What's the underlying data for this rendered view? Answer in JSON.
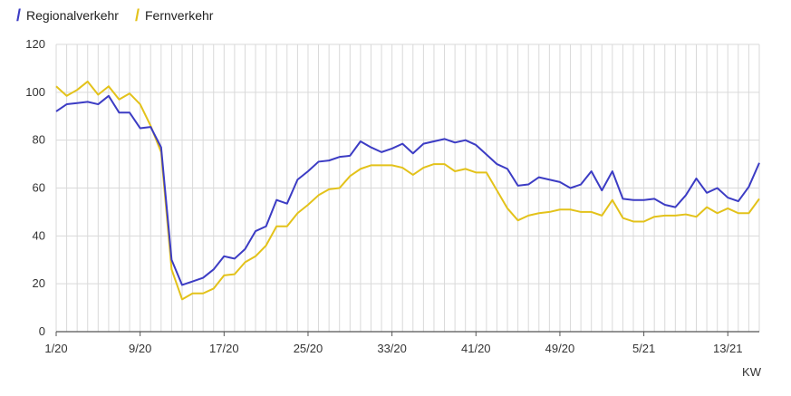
{
  "colors": {
    "regional": "#3c3cc4",
    "fern": "#e3c21a",
    "grid": "#d9d9d9",
    "axis": "#555555"
  },
  "chart_data": {
    "type": "line",
    "xlabel": "KW",
    "ylabel": "",
    "ylim": [
      0,
      120
    ],
    "yticks": [
      0,
      20,
      40,
      60,
      80,
      100,
      120
    ],
    "xtick_labels": [
      {
        "index": 0,
        "label": "1/20"
      },
      {
        "index": 8,
        "label": "9/20"
      },
      {
        "index": 16,
        "label": "17/20"
      },
      {
        "index": 24,
        "label": "25/20"
      },
      {
        "index": 32,
        "label": "33/20"
      },
      {
        "index": 40,
        "label": "41/20"
      },
      {
        "index": 48,
        "label": "49/20"
      },
      {
        "index": 56,
        "label": "5/21"
      },
      {
        "index": 64,
        "label": "13/21"
      }
    ],
    "legend": "top-left",
    "grid": true,
    "series": [
      {
        "name": "Regionalverkehr",
        "values": [
          92,
          95,
          95.5,
          96,
          95,
          98.5,
          91.5,
          91.5,
          85,
          85.5,
          77,
          30,
          19.5,
          21,
          22.5,
          26,
          31.5,
          30.5,
          34.5,
          42,
          44,
          55,
          53.5,
          63.5,
          67,
          71,
          71.5,
          73,
          73.5,
          79.5,
          77,
          75,
          76.5,
          78.5,
          74.5,
          78.5,
          79.5,
          80.5,
          79,
          80,
          78,
          74,
          70,
          68,
          61,
          61.5,
          64.5,
          63.5,
          62.5,
          60,
          61.5,
          67,
          59,
          67,
          55.5,
          55,
          55,
          55.5,
          53,
          52,
          57,
          64,
          58,
          60,
          56,
          54.5,
          60.5,
          70.5
        ]
      },
      {
        "name": "Fernverkehr",
        "values": [
          102.5,
          98.5,
          101,
          104.5,
          99,
          102.5,
          97,
          99.5,
          95,
          86,
          75,
          26,
          13.5,
          16,
          16,
          18,
          23.5,
          24,
          29,
          31.5,
          36,
          44,
          44,
          49.5,
          53,
          57,
          59.5,
          60,
          65,
          68,
          69.5,
          69.5,
          69.5,
          68.5,
          65.5,
          68.5,
          70,
          70,
          67,
          68,
          66.5,
          66.5,
          59,
          51.5,
          46.5,
          48.5,
          49.5,
          50,
          51,
          51,
          50,
          50,
          48.5,
          55,
          47.5,
          46,
          46,
          48,
          48.5,
          48.5,
          49,
          48,
          52,
          49.5,
          51.5,
          49.5,
          49.5,
          55.5
        ]
      }
    ]
  }
}
